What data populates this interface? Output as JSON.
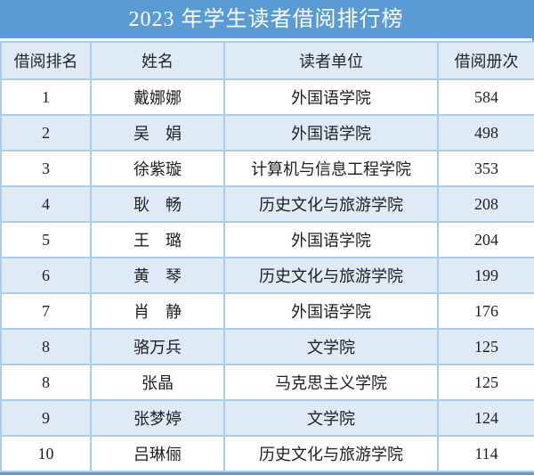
{
  "chart_data": {
    "type": "table",
    "title": "2023 年学生读者借阅排行榜",
    "columns": [
      "借阅排名",
      "姓名",
      "读者单位",
      "借阅册次"
    ],
    "rows": [
      {
        "rank": "1",
        "name": "戴娜娜",
        "unit": "外国语学院",
        "count": 584
      },
      {
        "rank": "2",
        "name": "吴　娟",
        "unit": "外国语学院",
        "count": 498
      },
      {
        "rank": "3",
        "name": "徐紫璇",
        "unit": "计算机与信息工程学院",
        "count": 353
      },
      {
        "rank": "4",
        "name": "耿　畅",
        "unit": "历史文化与旅游学院",
        "count": 208
      },
      {
        "rank": "5",
        "name": "王　璐",
        "unit": "外国语学院",
        "count": 204
      },
      {
        "rank": "6",
        "name": "黄　琴",
        "unit": "历史文化与旅游学院",
        "count": 199
      },
      {
        "rank": "7",
        "name": "肖　静",
        "unit": "外国语学院",
        "count": 176
      },
      {
        "rank": "8",
        "name": "骆万兵",
        "unit": "文学院",
        "count": 125
      },
      {
        "rank": "8",
        "name": "张晶",
        "unit": "马克思主义学院",
        "count": 125
      },
      {
        "rank": "9",
        "name": "张梦婷",
        "unit": "文学院",
        "count": 124
      },
      {
        "rank": "10",
        "name": "吕琳俪",
        "unit": "历史文化与旅游学院",
        "count": 114
      }
    ]
  },
  "colors": {
    "title_bar_bg": "#5b9bd5",
    "title_text": "#ffffff",
    "stripe_bg": "#deebf7",
    "row_bg": "#ffffff",
    "cell_border": "#aecbea",
    "outer_border": "#5b9bd5",
    "body_text": "#1f1f1f"
  }
}
